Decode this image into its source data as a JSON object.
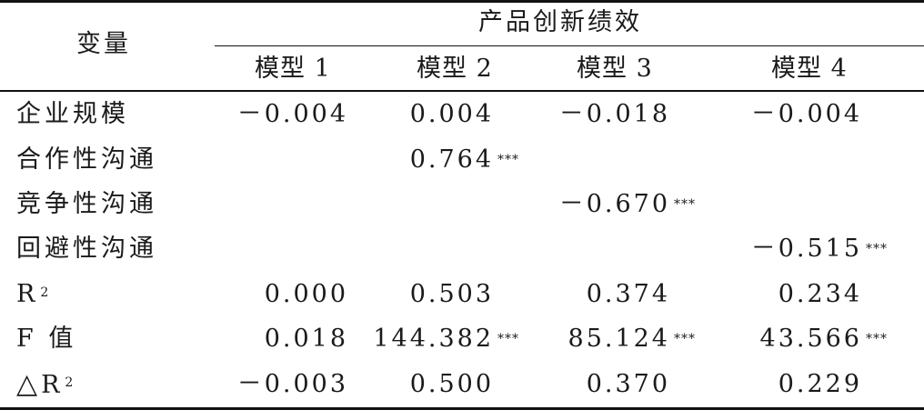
{
  "table": {
    "var_header": "变量",
    "group_header": "产品创新绩效",
    "models": [
      "模型 1",
      "模型 2",
      "模型 3",
      "模型 4"
    ],
    "rows": [
      {
        "label": "企业规模",
        "values": [
          "－0.004",
          "0.004",
          "－0.018",
          "－0.004"
        ],
        "stars": [
          "",
          "",
          "",
          ""
        ]
      },
      {
        "label": "合作性沟通",
        "values": [
          "",
          "0.764",
          "",
          ""
        ],
        "stars": [
          "",
          "***",
          "",
          ""
        ]
      },
      {
        "label": "竞争性沟通",
        "values": [
          "",
          "",
          "－0.670",
          ""
        ],
        "stars": [
          "",
          "",
          "***",
          ""
        ]
      },
      {
        "label": "回避性沟通",
        "values": [
          "",
          "",
          "",
          "－0.515"
        ],
        "stars": [
          "",
          "",
          "",
          "***"
        ]
      },
      {
        "label": "R",
        "label_sup": "2",
        "values": [
          "0.000",
          "0.503",
          "0.374",
          "0.234"
        ],
        "stars": [
          "",
          "",
          "",
          ""
        ]
      },
      {
        "label": "F 值",
        "values": [
          "0.018",
          "144.382",
          "85.124",
          "43.566"
        ],
        "stars": [
          "",
          "***",
          "***",
          "***"
        ]
      },
      {
        "label_prefix": "△",
        "label": "R",
        "label_sup": "2",
        "values": [
          "－0.003",
          "0.500",
          "0.370",
          "0.229"
        ],
        "stars": [
          "",
          "",
          "",
          ""
        ]
      }
    ]
  }
}
